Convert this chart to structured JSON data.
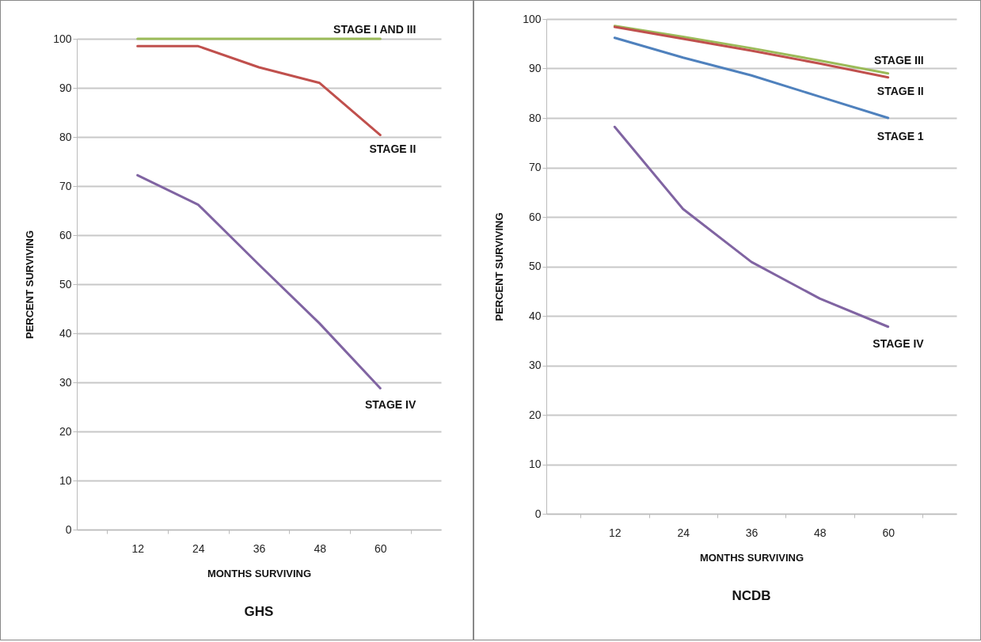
{
  "chart_data": [
    {
      "type": "line",
      "title": "GHS",
      "xlabel": "MONTHS SURVIVING",
      "ylabel": "PERCENT SURVIVING",
      "categories": [
        "12",
        "24",
        "36",
        "48",
        "60"
      ],
      "ylim": [
        0,
        100
      ],
      "yticks": [
        0,
        10,
        20,
        30,
        40,
        50,
        60,
        70,
        80,
        90,
        100
      ],
      "grid": "y",
      "legend": false,
      "series": [
        {
          "name": "STAGE I AND III",
          "color": "#9bbb59",
          "values": [
            100,
            100,
            100,
            100,
            100
          ]
        },
        {
          "name": "STAGE II",
          "color": "#c0504d",
          "values": [
            98.5,
            98.5,
            94.2,
            91,
            80.4
          ]
        },
        {
          "name": "STAGE IV",
          "color": "#8064a2",
          "values": [
            72.2,
            66.2,
            54,
            42,
            28.8
          ]
        }
      ]
    },
    {
      "type": "line",
      "title": "NCDB",
      "xlabel": "MONTHS SURVIVING",
      "ylabel": "PERCENT SURVIVING",
      "categories": [
        "12",
        "24",
        "36",
        "48",
        "60"
      ],
      "ylim": [
        0,
        100
      ],
      "yticks": [
        0,
        10,
        20,
        30,
        40,
        50,
        60,
        70,
        80,
        90,
        100
      ],
      "grid": "y",
      "legend": false,
      "series": [
        {
          "name": "STAGE III",
          "color": "#9bbb59",
          "values": [
            98.6,
            96.4,
            94.1,
            91.6,
            89
          ]
        },
        {
          "name": "STAGE II",
          "color": "#c0504d",
          "values": [
            98.4,
            96,
            93.6,
            91,
            88.2
          ]
        },
        {
          "name": "STAGE 1",
          "color": "#4f81bd",
          "values": [
            96.2,
            92.2,
            88.6,
            84.3,
            80
          ]
        },
        {
          "name": "STAGE IV",
          "color": "#8064a2",
          "values": [
            78.2,
            61.6,
            50.9,
            43.5,
            37.8
          ]
        }
      ]
    }
  ]
}
